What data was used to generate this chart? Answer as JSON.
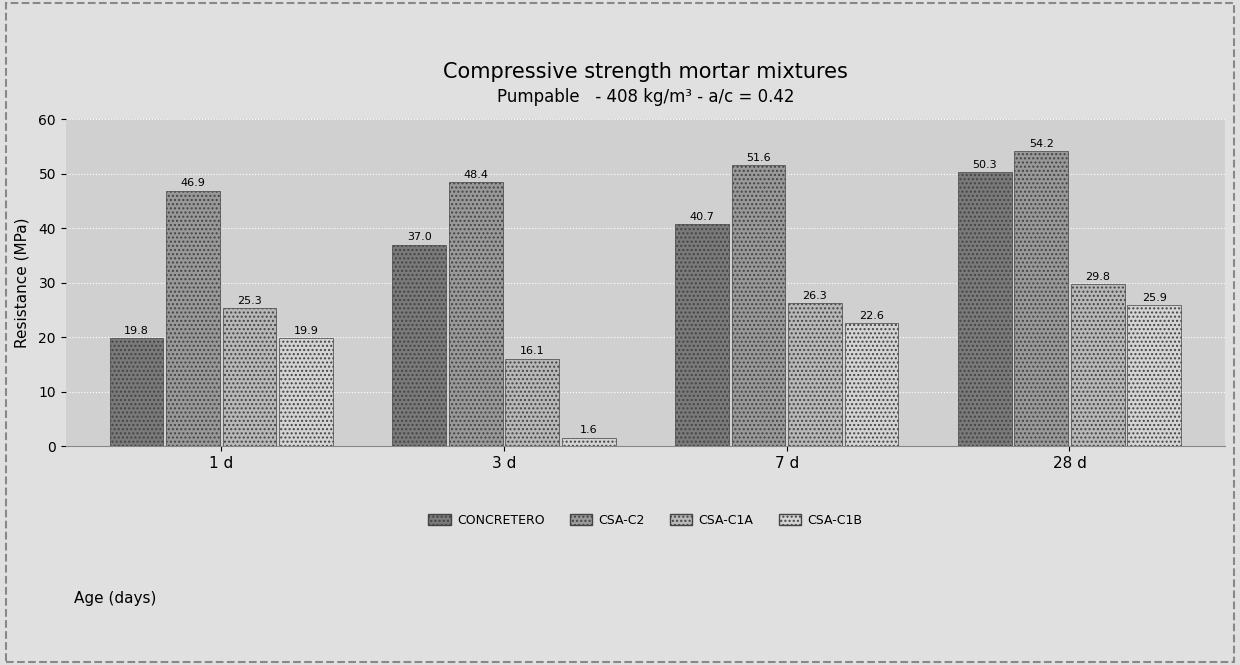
{
  "title": "Compressive strength mortar mixtures",
  "subtitle": "Pumpable   - 408 kg/m³ - a/c = 0.42",
  "ylabel": "Resistance (MPa)",
  "xlabel": "Age (days)",
  "age_labels": [
    "1 d",
    "3 d",
    "7 d",
    "28 d"
  ],
  "series_labels": [
    "CONCRETERO",
    "CSA-C2",
    "CSA-C1A",
    "CSA-C1B"
  ],
  "data": {
    "CONCRETERO": [
      19.8,
      37.0,
      40.7,
      50.3
    ],
    "CSA-C2": [
      46.9,
      48.4,
      51.6,
      54.2
    ],
    "CSA-C1A": [
      25.3,
      16.1,
      26.3,
      29.8
    ],
    "CSA-C1B": [
      19.9,
      1.6,
      22.6,
      25.9
    ]
  },
  "bar_colors": [
    "#7a7a7a",
    "#999999",
    "#b8b8b8",
    "#d4d4d4"
  ],
  "ylim": [
    0,
    60
  ],
  "yticks": [
    0,
    10,
    20,
    30,
    40,
    50,
    60
  ],
  "figure_bg": "#e0e0e0",
  "plot_bg": "#d0d0d0",
  "grid_color": "#ffffff",
  "title_fontsize": 15,
  "subtitle_fontsize": 12,
  "label_fontsize": 11,
  "tick_fontsize": 10,
  "legend_fontsize": 9,
  "value_fontsize": 8
}
